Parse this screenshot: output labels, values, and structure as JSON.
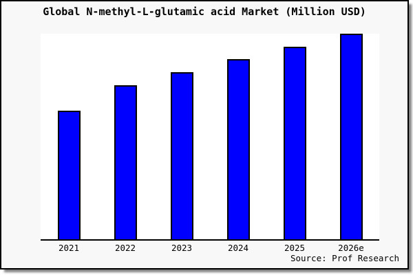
{
  "title": "Global N-methyl-L-glutamic acid Market (Million USD)",
  "source_note": "Source: Prof Research",
  "colors": {
    "bar_fill": "#0000FF",
    "bar_border": "#000000",
    "box_background": "#F8F8F8",
    "box_border": "#000000",
    "plot_background": "#FFFFFF",
    "axis": "#000000",
    "text": "#000000"
  },
  "chart_data": {
    "type": "bar",
    "title": "Global N-methyl-L-glutamic acid Market (Million USD)",
    "categories": [
      "2021",
      "2022",
      "2023",
      "2024",
      "2025",
      "2026e"
    ],
    "values": [
      62.4,
      74.9,
      81.4,
      87.6,
      93.6,
      100
    ],
    "values_note": "No y-axis scale shown in chart; values are relative bar heights estimated from pixels, indexed to 2026e = 100",
    "xlabel": "",
    "ylabel": "",
    "ylim": [
      0,
      100
    ],
    "grid": false,
    "legend": false,
    "y_axis_labels_visible": false,
    "bar_color": "#0000FF",
    "source_note": "Source: Prof Research"
  }
}
